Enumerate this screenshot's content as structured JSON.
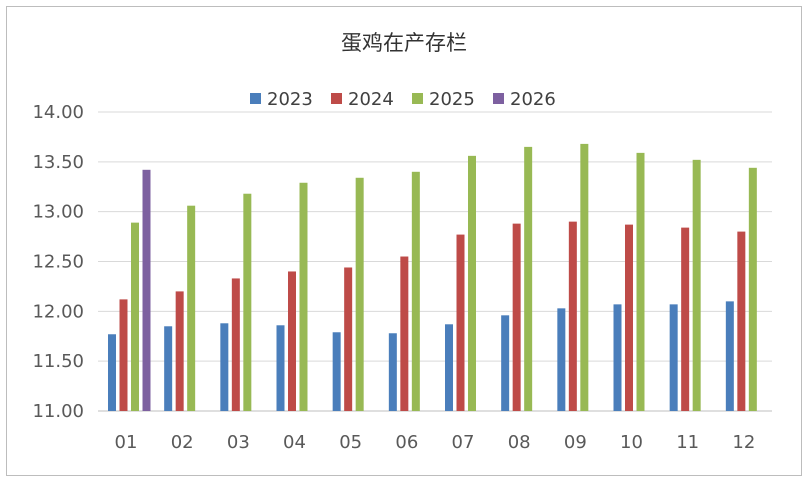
{
  "chart_data": {
    "type": "bar",
    "title": "蛋鸡在产存栏",
    "xlabel": "",
    "ylabel": "",
    "categories": [
      "01",
      "02",
      "03",
      "04",
      "05",
      "06",
      "07",
      "08",
      "09",
      "10",
      "11",
      "12"
    ],
    "ylim": [
      11.0,
      14.0
    ],
    "yticks": [
      "11.00",
      "11.50",
      "12.00",
      "12.50",
      "13.00",
      "13.50",
      "14.00"
    ],
    "ytick_values": [
      11.0,
      11.5,
      12.0,
      12.5,
      13.0,
      13.5,
      14.0
    ],
    "grid": true,
    "legend_position": "top",
    "series": [
      {
        "name": "2023",
        "color": "#4a7ebb",
        "values": [
          11.77,
          11.85,
          11.88,
          11.86,
          11.79,
          11.78,
          11.87,
          11.96,
          12.03,
          12.07,
          12.07,
          12.1
        ]
      },
      {
        "name": "2024",
        "color": "#be4b48",
        "values": [
          12.12,
          12.2,
          12.33,
          12.4,
          12.44,
          12.55,
          12.77,
          12.88,
          12.9,
          12.87,
          12.84,
          12.8
        ]
      },
      {
        "name": "2025",
        "color": "#98b954",
        "values": [
          12.89,
          13.06,
          13.18,
          13.29,
          13.34,
          13.4,
          13.56,
          13.65,
          13.68,
          13.59,
          13.52,
          13.44
        ]
      },
      {
        "name": "2026",
        "color": "#7d60a0",
        "values": [
          13.42,
          null,
          null,
          null,
          null,
          null,
          null,
          null,
          null,
          null,
          null,
          null
        ]
      }
    ]
  }
}
